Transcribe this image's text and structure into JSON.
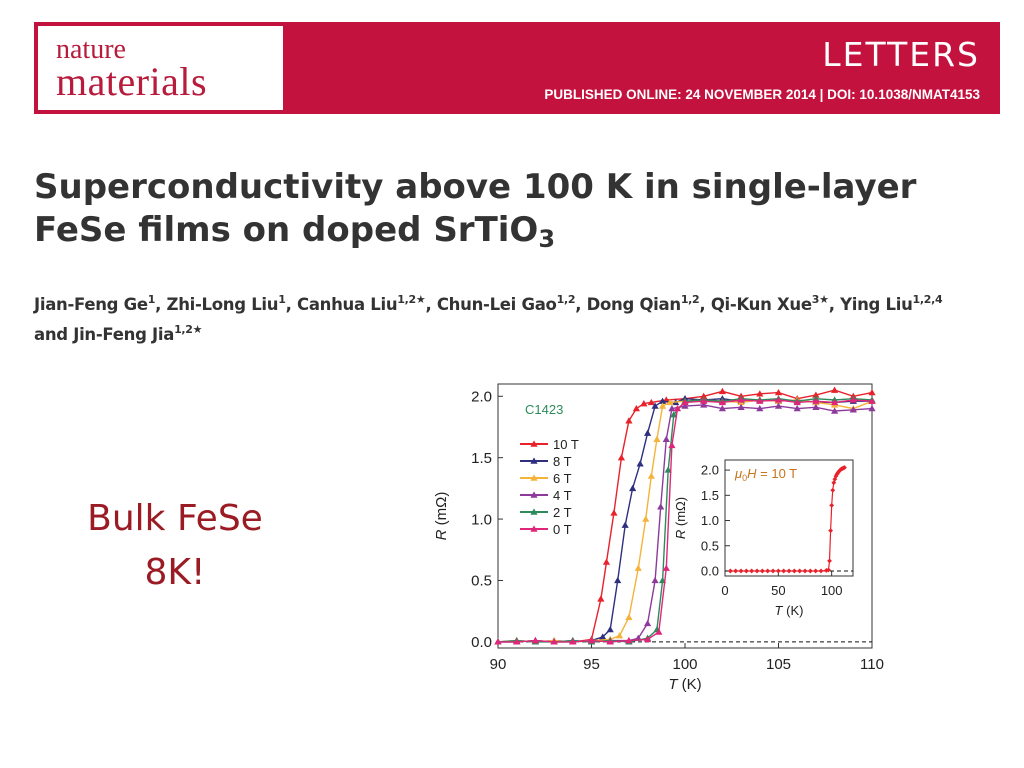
{
  "header": {
    "logo_top": "nature",
    "logo_bottom": "materials",
    "section": "LETTERS",
    "pub_info": "PUBLISHED ONLINE: 24 NOVEMBER 2014 | DOI: 10.1038/NMAT4153",
    "banner_color": "#c4123f"
  },
  "title": {
    "line1": "Superconductivity above 100 K in single-layer",
    "line2_main": "FeSe films on doped SrTiO",
    "line2_sub": "3"
  },
  "authors": {
    "line1": [
      {
        "name": "Jian-Feng Ge",
        "sup": "1",
        "sep": ", "
      },
      {
        "name": "Zhi-Long Liu",
        "sup": "1",
        "sep": ", "
      },
      {
        "name": "Canhua Liu",
        "sup": "1,2★",
        "sep": ", "
      },
      {
        "name": "Chun-Lei Gao",
        "sup": "1,2",
        "sep": ", "
      },
      {
        "name": "Dong Qian",
        "sup": "1,2",
        "sep": ", "
      },
      {
        "name": "Qi-Kun Xue",
        "sup": "3★",
        "sep": ", "
      },
      {
        "name": "Ying Liu",
        "sup": "1,2,4",
        "sep": ""
      }
    ],
    "line2": [
      {
        "name": "and Jin-Feng Jia",
        "sup": "1,2★",
        "sep": ""
      }
    ]
  },
  "note": {
    "line1": "Bulk FeSe",
    "line2": "8K!",
    "color": "#9b1b24"
  },
  "chart_data": [
    {
      "type": "line",
      "sample_label": "C1423",
      "xlabel_italic": "T",
      "xlabel_unit": "(K)",
      "ylabel_italic": "R",
      "ylabel_unit": "(mΩ)",
      "xlim": [
        90,
        110
      ],
      "ylim": [
        -0.05,
        2.1
      ],
      "xticks": [
        90,
        95,
        100,
        105,
        110
      ],
      "yticks": [
        "0.0",
        "0.5",
        "1.0",
        "1.5",
        "2.0"
      ],
      "ytick_values": [
        0,
        0.5,
        1.0,
        1.5,
        2.0
      ],
      "legend_position": "left",
      "series": [
        {
          "name": "10 T",
          "color": "#e8212a",
          "x": [
            90,
            91,
            92,
            93,
            94,
            95,
            95.5,
            95.8,
            96.2,
            96.6,
            97,
            97.4,
            97.8,
            98.2,
            99,
            100,
            101,
            102,
            103,
            104,
            105,
            106,
            107,
            108,
            109,
            110
          ],
          "y": [
            0.0,
            0.01,
            0.0,
            0.01,
            0.0,
            0.02,
            0.35,
            0.65,
            1.05,
            1.5,
            1.8,
            1.9,
            1.94,
            1.95,
            1.97,
            1.98,
            2.0,
            2.04,
            2.0,
            2.02,
            2.03,
            1.98,
            2.01,
            2.05,
            2.0,
            2.03
          ]
        },
        {
          "name": "8 T",
          "color": "#2e2f7e",
          "x": [
            90,
            91,
            92,
            93,
            94,
            95,
            95.6,
            96,
            96.4,
            96.8,
            97.2,
            97.6,
            98,
            98.4,
            98.8,
            99.5,
            100,
            101,
            102,
            103,
            104,
            105,
            106,
            107,
            108,
            109,
            110
          ],
          "y": [
            0.0,
            0.0,
            0.01,
            0.0,
            0.0,
            0.01,
            0.04,
            0.1,
            0.5,
            0.95,
            1.25,
            1.45,
            1.7,
            1.92,
            1.96,
            1.95,
            1.98,
            1.97,
            1.98,
            1.96,
            1.97,
            1.96,
            1.97,
            1.95,
            1.95,
            1.96,
            1.96
          ]
        },
        {
          "name": "6 T",
          "color": "#f5b33a",
          "x": [
            90,
            91,
            92,
            93,
            94,
            95,
            96,
            96.5,
            97,
            97.5,
            97.9,
            98.2,
            98.5,
            98.8,
            99.2,
            100,
            101,
            102,
            103,
            104,
            105,
            106,
            107,
            108,
            109,
            110
          ],
          "y": [
            0.0,
            0.01,
            0.0,
            0.01,
            0.0,
            0.01,
            0.02,
            0.05,
            0.2,
            0.6,
            1.0,
            1.35,
            1.65,
            1.92,
            1.95,
            1.96,
            1.97,
            1.96,
            1.95,
            1.97,
            1.96,
            1.97,
            1.95,
            1.93,
            1.9,
            1.96
          ]
        },
        {
          "name": "4 T",
          "color": "#8e3a9c",
          "x": [
            90,
            91,
            92,
            93,
            94,
            95,
            96,
            97,
            97.5,
            98,
            98.4,
            98.7,
            99,
            99.3,
            100,
            101,
            102,
            103,
            104,
            105,
            106,
            107,
            108,
            109,
            110
          ],
          "y": [
            0.0,
            0.0,
            0.01,
            0.0,
            0.01,
            0.0,
            0.01,
            0.01,
            0.03,
            0.15,
            0.5,
            1.1,
            1.65,
            1.9,
            1.92,
            1.93,
            1.9,
            1.91,
            1.9,
            1.92,
            1.9,
            1.91,
            1.88,
            1.89,
            1.9
          ]
        },
        {
          "name": "2 T",
          "color": "#2e8a5a",
          "x": [
            90,
            91,
            92,
            93,
            94,
            95,
            96,
            97,
            98,
            98.5,
            98.8,
            99.1,
            99.4,
            100,
            101,
            102,
            103,
            104,
            105,
            106,
            107,
            108,
            109,
            110
          ],
          "y": [
            0.0,
            0.01,
            0.0,
            0.0,
            0.01,
            0.0,
            0.01,
            0.0,
            0.03,
            0.1,
            0.5,
            1.4,
            1.85,
            1.96,
            1.97,
            1.96,
            1.98,
            1.97,
            1.98,
            1.96,
            1.98,
            1.97,
            1.98,
            1.97
          ]
        },
        {
          "name": "0 T",
          "color": "#e0267a",
          "x": [
            90,
            91,
            92,
            93,
            94,
            95,
            96,
            97,
            98,
            98.6,
            99,
            99.3,
            99.6,
            100,
            101,
            102,
            103,
            104,
            105,
            106,
            107,
            108,
            109,
            110
          ],
          "y": [
            0.0,
            0.0,
            0.01,
            0.0,
            0.0,
            0.01,
            0.0,
            0.01,
            0.02,
            0.08,
            0.6,
            1.6,
            1.9,
            1.95,
            1.96,
            1.95,
            1.97,
            1.96,
            1.97,
            1.95,
            1.96,
            1.95,
            1.97,
            1.96
          ]
        }
      ],
      "reference_line_y": 0.0
    },
    {
      "type": "line",
      "annotation": "μ0H = 10 T",
      "xlabel_italic": "T",
      "xlabel_unit": "(K)",
      "ylabel_italic": "R",
      "ylabel_unit": "(mΩ)",
      "xlim": [
        0,
        120
      ],
      "ylim": [
        -0.1,
        2.2
      ],
      "xticks": [
        0,
        50,
        100
      ],
      "yticks": [
        "0.0",
        "0.5",
        "1.0",
        "1.5",
        "2.0"
      ],
      "ytick_values": [
        0,
        0.5,
        1.0,
        1.5,
        2.0
      ],
      "series": [
        {
          "name": "",
          "color": "#e8212a",
          "x": [
            5,
            10,
            15,
            20,
            25,
            30,
            35,
            40,
            45,
            50,
            55,
            60,
            65,
            70,
            75,
            80,
            85,
            90,
            95,
            97,
            98,
            99,
            100,
            101,
            102,
            103,
            104,
            105,
            106,
            107,
            108,
            109,
            110,
            111,
            112
          ],
          "y": [
            0,
            0,
            0,
            0,
            0,
            0,
            0,
            0,
            0,
            0,
            0,
            0,
            0,
            0,
            0,
            0,
            0,
            0,
            0.01,
            0.02,
            0.2,
            0.8,
            1.3,
            1.6,
            1.75,
            1.82,
            1.88,
            1.92,
            1.95,
            1.98,
            2.0,
            2.02,
            2.03,
            2.04,
            2.05
          ]
        }
      ],
      "reference_line_y": 0.0
    }
  ]
}
